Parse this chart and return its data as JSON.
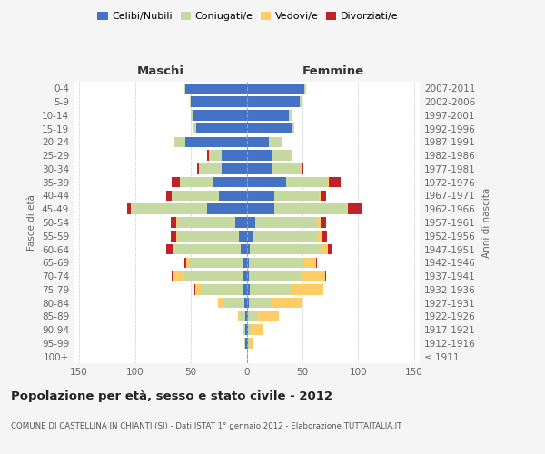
{
  "age_groups": [
    "100+",
    "95-99",
    "90-94",
    "85-89",
    "80-84",
    "75-79",
    "70-74",
    "65-69",
    "60-64",
    "55-59",
    "50-54",
    "45-49",
    "40-44",
    "35-39",
    "30-34",
    "25-29",
    "20-24",
    "15-19",
    "10-14",
    "5-9",
    "0-4"
  ],
  "birth_years": [
    "≤ 1911",
    "1912-1916",
    "1917-1921",
    "1922-1926",
    "1927-1931",
    "1932-1936",
    "1937-1941",
    "1942-1946",
    "1947-1951",
    "1952-1956",
    "1957-1961",
    "1962-1966",
    "1967-1971",
    "1972-1976",
    "1977-1981",
    "1982-1986",
    "1987-1991",
    "1992-1996",
    "1997-2001",
    "2002-2006",
    "2007-2011"
  ],
  "maschi": {
    "celibi": [
      0,
      1,
      1,
      1,
      2,
      3,
      4,
      4,
      5,
      7,
      10,
      35,
      25,
      30,
      22,
      22,
      55,
      45,
      48,
      50,
      55
    ],
    "coniugati": [
      0,
      1,
      2,
      5,
      18,
      38,
      52,
      48,
      60,
      55,
      52,
      68,
      42,
      30,
      20,
      12,
      10,
      3,
      2,
      1,
      1
    ],
    "vedovi": [
      0,
      0,
      0,
      2,
      6,
      5,
      10,
      2,
      1,
      1,
      1,
      1,
      0,
      0,
      1,
      0,
      0,
      0,
      0,
      0,
      0
    ],
    "divorziati": [
      0,
      0,
      0,
      0,
      0,
      1,
      1,
      2,
      6,
      5,
      5,
      3,
      5,
      7,
      1,
      1,
      0,
      0,
      0,
      0,
      0
    ]
  },
  "femmine": {
    "nubili": [
      0,
      1,
      1,
      1,
      2,
      3,
      2,
      2,
      3,
      5,
      8,
      25,
      25,
      35,
      22,
      22,
      20,
      40,
      38,
      48,
      52
    ],
    "coniugate": [
      0,
      1,
      3,
      8,
      20,
      38,
      48,
      50,
      65,
      58,
      55,
      65,
      40,
      38,
      28,
      18,
      12,
      3,
      3,
      2,
      1
    ],
    "vedove": [
      1,
      3,
      10,
      20,
      28,
      28,
      20,
      10,
      5,
      4,
      3,
      1,
      1,
      1,
      0,
      0,
      0,
      0,
      0,
      0,
      0
    ],
    "divorziate": [
      0,
      0,
      0,
      0,
      0,
      0,
      1,
      1,
      3,
      5,
      5,
      12,
      5,
      10,
      1,
      0,
      0,
      0,
      0,
      0,
      0
    ]
  },
  "colors": {
    "celibi": "#4472C4",
    "coniugati": "#C5D9A0",
    "vedovi": "#FFCC66",
    "divorziati": "#C0222A"
  },
  "xlim": 155,
  "title": "Popolazione per età, sesso e stato civile - 2012",
  "subtitle": "COMUNE DI CASTELLINA IN CHIANTI (SI) - Dati ISTAT 1° gennaio 2012 - Elaborazione TUTTAITALIA.IT",
  "legend_labels": [
    "Celibi/Nubili",
    "Coniugati/e",
    "Vedovi/e",
    "Divorziati/e"
  ],
  "background_color": "#f5f5f5",
  "plot_background": "#ffffff"
}
